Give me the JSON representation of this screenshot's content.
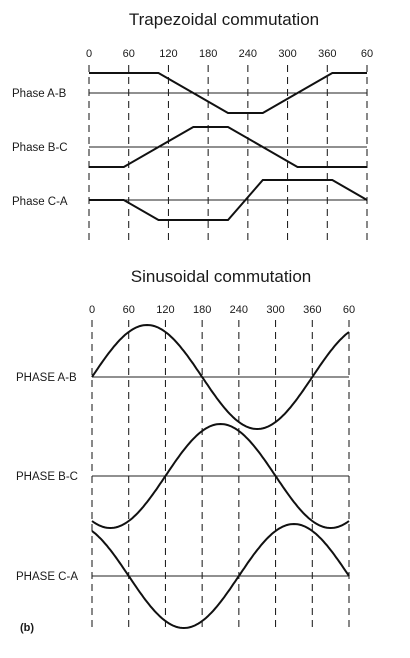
{
  "figure": {
    "trapezoidal": {
      "title": "Trapezoidal commutation",
      "ticks": [
        "0",
        "60",
        "120",
        "180",
        "240",
        "300",
        "360",
        "60"
      ],
      "phases": [
        {
          "label": "Phase A-B",
          "levels": [
            1,
            1,
            1,
            0,
            -1,
            -1,
            0,
            1,
            1
          ]
        },
        {
          "label": "Phase B-C",
          "levels": [
            -1,
            -1,
            0,
            1,
            1,
            0,
            -1,
            -1,
            -1
          ]
        },
        {
          "label": "Phase C-A",
          "levels": [
            0,
            0,
            -1,
            -1,
            -1,
            1,
            1,
            1,
            0
          ]
        }
      ]
    },
    "sinusoidal": {
      "title": "Sinusoidal commutation",
      "ticks": [
        "0",
        "60",
        "120",
        "180",
        "240",
        "300",
        "360",
        "60"
      ],
      "phases": [
        {
          "label": "PHASE A-B",
          "phase_offset_deg": 0
        },
        {
          "label": "PHASE B-C",
          "phase_offset_deg": -120
        },
        {
          "label": "PHASE C-A",
          "phase_offset_deg": -240
        }
      ]
    },
    "caption": "(b)"
  }
}
